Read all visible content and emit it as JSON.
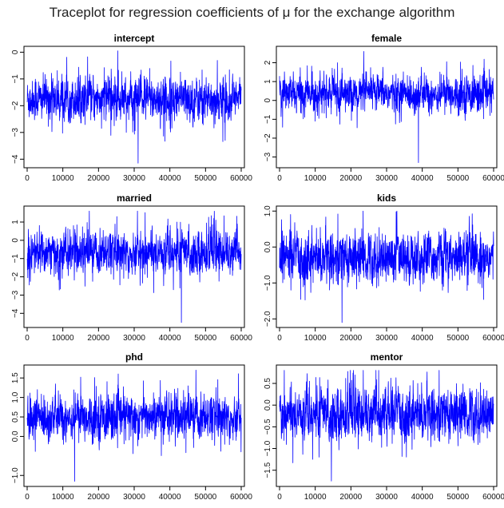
{
  "title": "Traceplot for regression coefficients of μ for the exchange algorithm",
  "colors": {
    "trace": "#0000ff",
    "axis": "#000000"
  },
  "chart_data": [
    {
      "type": "line",
      "title": "intercept",
      "x_ticks": [
        "0",
        "10000",
        "20000",
        "30000",
        "40000",
        "50000",
        "60000"
      ],
      "xlim": [
        0,
        60000
      ],
      "y_ticks": [
        {
          "v": 0,
          "label": "0"
        },
        {
          "v": -1,
          "label": "−1"
        },
        {
          "v": -2,
          "label": "−2"
        },
        {
          "v": -3,
          "label": "−3"
        },
        {
          "v": -4,
          "label": "−4"
        }
      ],
      "ylim": [
        -4.2,
        0.1
      ],
      "series": [
        {
          "center": -1.75,
          "band_sd": 0.38,
          "min": -4.15,
          "max": 0.05
        }
      ]
    },
    {
      "type": "line",
      "title": "female",
      "x_ticks": [
        "0",
        "10000",
        "20000",
        "30000",
        "40000",
        "50000",
        "60000"
      ],
      "xlim": [
        0,
        60000
      ],
      "y_ticks": [
        {
          "v": 2,
          "label": "2"
        },
        {
          "v": 1,
          "label": "1"
        },
        {
          "v": 0,
          "label": "0"
        },
        {
          "v": -1,
          "label": "−1"
        },
        {
          "v": -2,
          "label": "−2"
        },
        {
          "v": -3,
          "label": "−3"
        }
      ],
      "ylim": [
        -3.4,
        2.7
      ],
      "series": [
        {
          "center": 0.35,
          "band_sd": 0.45,
          "min": -3.3,
          "max": 2.6
        }
      ]
    },
    {
      "type": "line",
      "title": "married",
      "x_ticks": [
        "0",
        "10000",
        "20000",
        "30000",
        "40000",
        "50000",
        "60000"
      ],
      "xlim": [
        0,
        60000
      ],
      "y_ticks": [
        {
          "v": 1,
          "label": "1"
        },
        {
          "v": 0,
          "label": "0"
        },
        {
          "v": -1,
          "label": "−1"
        },
        {
          "v": -2,
          "label": "−2"
        },
        {
          "v": -3,
          "label": "−3"
        },
        {
          "v": -4,
          "label": "−4"
        }
      ],
      "ylim": [
        -4.6,
        1.7
      ],
      "series": [
        {
          "center": -0.65,
          "band_sd": 0.55,
          "min": -4.5,
          "max": 1.6
        }
      ]
    },
    {
      "type": "line",
      "title": "kids",
      "x_ticks": [
        "0",
        "10000",
        "20000",
        "30000",
        "40000",
        "50000",
        "60000"
      ],
      "xlim": [
        0,
        60000
      ],
      "y_ticks": [
        {
          "v": 1.0,
          "label": "1.0"
        },
        {
          "v": 0.0,
          "label": "0.0"
        },
        {
          "v": -1.0,
          "label": "−1.0"
        },
        {
          "v": -2.0,
          "label": "−2.0"
        }
      ],
      "ylim": [
        -2.15,
        1.05
      ],
      "series": [
        {
          "center": -0.3,
          "band_sd": 0.33,
          "min": -2.1,
          "max": 1.0
        }
      ]
    },
    {
      "type": "line",
      "title": "phd",
      "x_ticks": [
        "0",
        "10000",
        "20000",
        "30000",
        "40000",
        "50000",
        "60000"
      ],
      "xlim": [
        0,
        60000
      ],
      "y_ticks": [
        {
          "v": 1.5,
          "label": "1.5"
        },
        {
          "v": 1.0,
          "label": "1.0"
        },
        {
          "v": 0.5,
          "label": "0.5"
        },
        {
          "v": 0.0,
          "label": "0.0"
        },
        {
          "v": -1.0,
          "label": "−1.0"
        }
      ],
      "ylim": [
        -1.2,
        1.75
      ],
      "series": [
        {
          "center": 0.5,
          "band_sd": 0.27,
          "min": -1.15,
          "max": 1.7
        }
      ]
    },
    {
      "type": "line",
      "title": "mentor",
      "x_ticks": [
        "0",
        "10000",
        "20000",
        "30000",
        "40000",
        "50000",
        "60000"
      ],
      "xlim": [
        0,
        60000
      ],
      "y_ticks": [
        {
          "v": 0.5,
          "label": "0.5"
        },
        {
          "v": 0.0,
          "label": "0.0"
        },
        {
          "v": -0.5,
          "label": "−0.5"
        },
        {
          "v": -1.0,
          "label": "−1.0"
        },
        {
          "v": -1.5,
          "label": "−1.5"
        }
      ],
      "ylim": [
        -1.8,
        0.85
      ],
      "series": [
        {
          "center": -0.2,
          "band_sd": 0.28,
          "min": -1.75,
          "max": 0.8
        }
      ]
    }
  ]
}
